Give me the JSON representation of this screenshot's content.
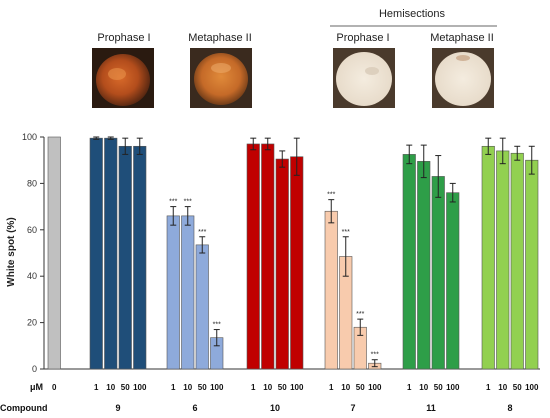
{
  "header": {
    "hemisections_label": "Hemisections",
    "photos": [
      {
        "label": "Prophase I",
        "kind": "whole"
      },
      {
        "label": "Metaphase II",
        "kind": "whole"
      },
      {
        "label": "Prophase I",
        "kind": "hemisection"
      },
      {
        "label": "Metaphase II",
        "kind": "hemisection"
      }
    ]
  },
  "chart_data": {
    "type": "bar",
    "title": "",
    "xlabel": "",
    "ylabel": "White spot (%)",
    "ylim": [
      0,
      100
    ],
    "yticks": [
      "0",
      "20",
      "40",
      "60",
      "80",
      "100"
    ],
    "grid": false,
    "concentration_row_label": "μM",
    "compound_row_label": "Compound",
    "groups": [
      {
        "compound": "",
        "color": "#c0c0c0",
        "concentrations": [
          "0"
        ],
        "values": [
          100
        ],
        "errors": [
          0
        ],
        "stars": [
          ""
        ]
      },
      {
        "compound": "9",
        "color": "#1f4e79",
        "concentrations": [
          "1",
          "10",
          "50",
          "100"
        ],
        "values": [
          99.5,
          99.5,
          96,
          96
        ],
        "errors": [
          0.5,
          0.5,
          3.5,
          3.5
        ],
        "stars": [
          "",
          "",
          "",
          ""
        ]
      },
      {
        "compound": "6",
        "color": "#8eaadb",
        "concentrations": [
          "1",
          "10",
          "50",
          "100"
        ],
        "values": [
          66,
          66,
          53.5,
          13.5
        ],
        "errors": [
          4,
          4,
          3.5,
          3.5
        ],
        "stars": [
          "***",
          "***",
          "***",
          "***"
        ]
      },
      {
        "compound": "10",
        "color": "#c00000",
        "concentrations": [
          "1",
          "10",
          "50",
          "100"
        ],
        "values": [
          97,
          97,
          90.5,
          91.5
        ],
        "errors": [
          2.5,
          2.5,
          3.5,
          8
        ],
        "stars": [
          "",
          "",
          "",
          ""
        ]
      },
      {
        "compound": "7",
        "color": "#f8cbad",
        "concentrations": [
          "1",
          "10",
          "50",
          "100"
        ],
        "values": [
          68,
          48.5,
          18,
          2.5
        ],
        "errors": [
          5,
          8.5,
          3.5,
          1.5
        ],
        "stars": [
          "***",
          "***",
          "***",
          "***"
        ]
      },
      {
        "compound": "11",
        "color": "#2e9e48",
        "concentrations": [
          "1",
          "10",
          "50",
          "100"
        ],
        "values": [
          92.5,
          89.5,
          83,
          76
        ],
        "errors": [
          4,
          7,
          9,
          4
        ],
        "stars": [
          "",
          "",
          "",
          ""
        ]
      },
      {
        "compound": "8",
        "color": "#92d050",
        "concentrations": [
          "1",
          "10",
          "50",
          "100"
        ],
        "values": [
          96,
          94,
          93,
          90
        ],
        "errors": [
          3.5,
          5.5,
          3,
          6
        ],
        "stars": [
          "",
          "",
          "",
          ""
        ]
      }
    ]
  }
}
